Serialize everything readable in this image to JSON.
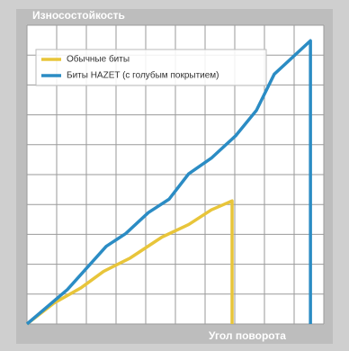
{
  "chart_data": {
    "type": "line",
    "ylabel": "Износостойкость",
    "xlabel": "Угол поворота",
    "xlim": [
      0,
      100
    ],
    "ylim": [
      0,
      100
    ],
    "xticks": [
      0,
      10,
      20,
      30,
      40,
      50,
      60,
      70,
      80,
      90,
      100
    ],
    "yticks": [
      0,
      10,
      20,
      30,
      40,
      50,
      60,
      70,
      80,
      90,
      100
    ],
    "grid": true,
    "legend": "upper left",
    "series": [
      {
        "name": "Обычные биты",
        "color": "#e8c53a",
        "x": [
          0,
          9.1,
          18.2,
          25.8,
          34.8,
          45.5,
          54.5,
          62.1,
          69.1,
          69.1
        ],
        "values": [
          0,
          7,
          12.1,
          17.6,
          22.1,
          29.1,
          33.3,
          38.2,
          41.2,
          0
        ]
      },
      {
        "name": "Биты HAZET (с голубым покрытием)",
        "color": "#2b8cc4",
        "x": [
          0,
          13.6,
          26.7,
          33.3,
          40.9,
          47.9,
          54.5,
          62.1,
          70.3,
          77.3,
          83.3,
          95.5,
          95.5
        ],
        "values": [
          0,
          11.5,
          26,
          30.3,
          37.3,
          41.8,
          50.3,
          55.5,
          63,
          71.5,
          83.6,
          94.8,
          0
        ]
      }
    ]
  }
}
